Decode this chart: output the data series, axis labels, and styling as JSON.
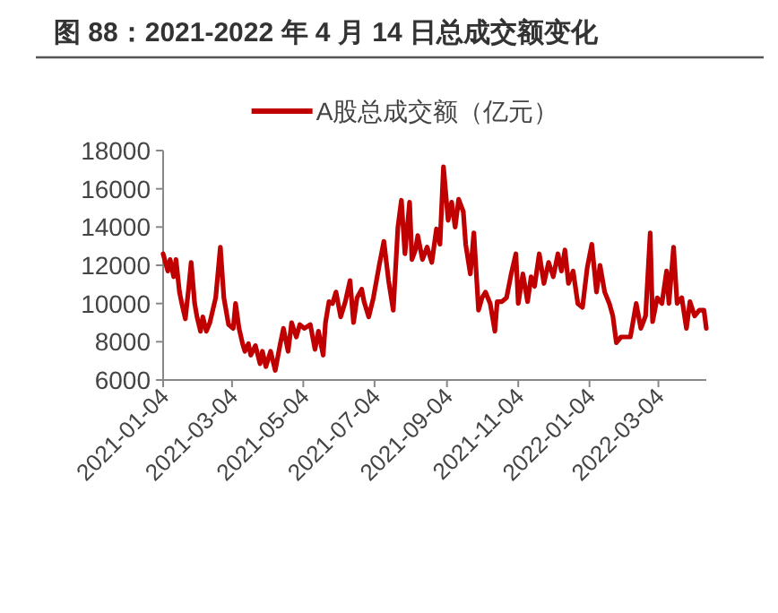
{
  "chart_data": {
    "type": "line",
    "title": "图 88：2021-2022 年 4 月 14 日总成交额变化",
    "x": [
      "2021-01-04",
      "2021-01-08",
      "2021-01-10",
      "2021-01-13",
      "2021-01-15",
      "2021-01-18",
      "2021-01-20",
      "2021-01-23",
      "2021-01-26",
      "2021-01-28",
      "2021-01-31",
      "2021-02-02",
      "2021-02-05",
      "2021-02-07",
      "2021-02-10",
      "2021-02-13",
      "2021-02-18",
      "2021-02-22",
      "2021-02-25",
      "2021-03-01",
      "2021-03-05",
      "2021-03-07",
      "2021-03-10",
      "2021-03-13",
      "2021-03-15",
      "2021-03-18",
      "2021-03-20",
      "2021-03-24",
      "2021-03-28",
      "2021-03-30",
      "2021-04-02",
      "2021-04-06",
      "2021-04-10",
      "2021-04-14",
      "2021-04-17",
      "2021-04-21",
      "2021-04-24",
      "2021-04-28",
      "2021-05-01",
      "2021-05-05",
      "2021-05-10",
      "2021-05-14",
      "2021-05-17",
      "2021-05-21",
      "2021-05-23",
      "2021-05-26",
      "2021-05-29",
      "2021-06-01",
      "2021-06-05",
      "2021-06-09",
      "2021-06-13",
      "2021-06-16",
      "2021-06-19",
      "2021-06-23",
      "2021-06-25",
      "2021-06-29",
      "2021-07-03",
      "2021-07-08",
      "2021-07-12",
      "2021-07-16",
      "2021-07-20",
      "2021-07-24",
      "2021-07-27",
      "2021-07-30",
      "2021-08-03",
      "2021-08-05",
      "2021-08-08",
      "2021-08-10",
      "2021-08-14",
      "2021-08-18",
      "2021-08-22",
      "2021-08-26",
      "2021-08-29",
      "2021-09-01",
      "2021-09-05",
      "2021-09-08",
      "2021-09-11",
      "2021-09-14",
      "2021-09-18",
      "2021-09-20",
      "2021-09-24",
      "2021-09-27",
      "2021-10-01",
      "2021-10-04",
      "2021-10-07",
      "2021-10-11",
      "2021-10-15",
      "2021-10-17",
      "2021-10-21",
      "2021-10-25",
      "2021-10-29",
      "2021-11-02",
      "2021-11-04",
      "2021-11-08",
      "2021-11-12",
      "2021-11-15",
      "2021-11-18",
      "2021-11-22",
      "2021-11-26",
      "2021-11-30",
      "2021-12-04",
      "2021-12-08",
      "2021-12-11",
      "2021-12-14",
      "2021-12-17",
      "2021-12-21",
      "2021-12-25",
      "2021-12-29",
      "2022-01-02",
      "2022-01-06",
      "2022-01-10",
      "2022-01-13",
      "2022-01-17",
      "2022-01-21",
      "2022-01-24",
      "2022-01-27",
      "2022-01-31",
      "2022-02-08",
      "2022-02-13",
      "2022-02-17",
      "2022-02-21",
      "2022-02-25",
      "2022-02-27",
      "2022-03-03",
      "2022-03-07",
      "2022-03-11",
      "2022-03-13",
      "2022-03-17",
      "2022-03-20",
      "2022-03-24",
      "2022-03-28",
      "2022-03-31",
      "2022-04-04",
      "2022-04-08",
      "2022-04-12",
      "2022-04-14"
    ],
    "series": [
      {
        "name": "A股总成交额（亿元）",
        "color": "#c00000",
        "values": [
          12600,
          11700,
          12300,
          11400,
          12300,
          10600,
          10000,
          9200,
          10900,
          12150,
          10000,
          9300,
          8550,
          9300,
          8550,
          9000,
          10300,
          12950,
          10300,
          8900,
          8700,
          10000,
          8700,
          7900,
          7500,
          7900,
          7300,
          7800,
          6850,
          7500,
          6700,
          7500,
          6500,
          7800,
          8700,
          7500,
          9000,
          8250,
          8900,
          8700,
          8900,
          7600,
          8550,
          7300,
          9000,
          10100,
          10000,
          10600,
          9300,
          10100,
          11200,
          9000,
          10300,
          10750,
          10100,
          9300,
          10300,
          12000,
          13250,
          11200,
          9650,
          14000,
          15400,
          12600,
          15300,
          12300,
          12800,
          13550,
          12300,
          12950,
          12150,
          13900,
          13100,
          17150,
          14350,
          15300,
          14000,
          15450,
          14800,
          13100,
          11550,
          13700,
          9650,
          10300,
          10600,
          10000,
          8550,
          10100,
          10100,
          10300,
          11550,
          12600,
          10000,
          11550,
          10100,
          11400,
          10900,
          12600,
          11050,
          12150,
          11400,
          12600,
          11700,
          12800,
          11050,
          11700,
          10000,
          9800,
          11850,
          13100,
          10600,
          12000,
          10600,
          10000,
          9350,
          7950,
          8250,
          8250,
          10000,
          8700,
          9350,
          13700,
          9050,
          10300,
          10000,
          11700,
          10000,
          12950,
          10000,
          10300,
          8700,
          10100,
          9350,
          9650,
          9650,
          8700
        ]
      }
    ],
    "xlim": [
      "2021-01-04",
      "2022-04-14"
    ],
    "xticks": [
      {
        "value": "2021-01-04",
        "label": "2021-01-04"
      },
      {
        "value": "2021-03-04",
        "label": "2021-03-04"
      },
      {
        "value": "2021-05-04",
        "label": "2021-05-04"
      },
      {
        "value": "2021-07-04",
        "label": "2021-07-04"
      },
      {
        "value": "2021-09-04",
        "label": "2021-09-04"
      },
      {
        "value": "2021-11-04",
        "label": "2021-11-04"
      },
      {
        "value": "2022-01-04",
        "label": "2022-01-04"
      },
      {
        "value": "2022-03-04",
        "label": "2022-03-04"
      }
    ],
    "ylim": [
      6000,
      18000
    ],
    "yticks": [
      6000,
      8000,
      10000,
      12000,
      14000,
      16000,
      18000
    ],
    "grid": false,
    "legend": "top",
    "marker": "none",
    "line_style": "solid"
  }
}
